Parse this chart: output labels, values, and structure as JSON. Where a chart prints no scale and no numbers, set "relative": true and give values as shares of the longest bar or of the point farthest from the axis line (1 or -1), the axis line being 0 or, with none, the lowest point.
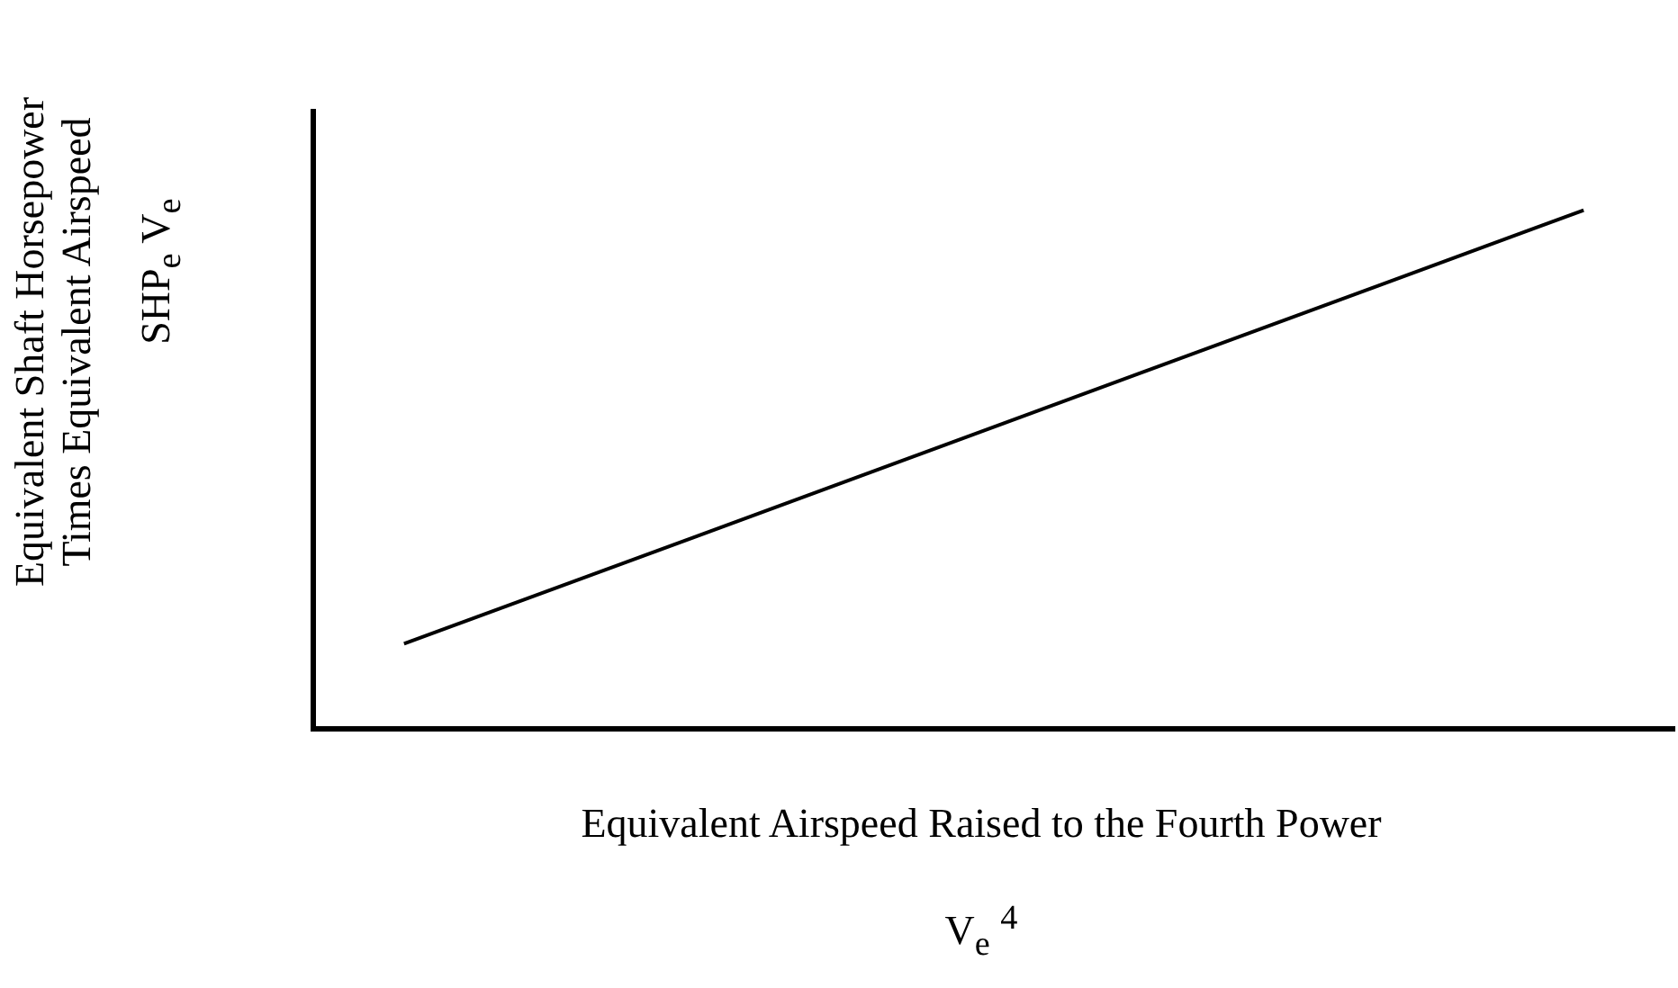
{
  "chart_data": {
    "type": "line",
    "relative": true,
    "tick_labels": false,
    "grid": false,
    "legend": false,
    "marker": "none",
    "line_style": "solid",
    "xlabel": "Equivalent Airspeed Raised to the Fourth Power",
    "ylabel": "SHP$_{e}$ V$_{e}$",
    "annotations": [
      "Equivalent Shaft Horsepower Times Equivalent Airspeed",
      "V$_{e}$ $^{4}$"
    ],
    "categories": [
      null,
      null,
      null,
      null,
      null,
      null,
      null,
      null,
      null,
      null,
      null,
      null,
      null,
      null,
      null,
      null
    ],
    "series": [
      {
        "color": "#000000",
        "values": [
          null,
          0.164,
          null,
          null,
          null,
          null,
          null,
          null,
          null,
          null,
          null,
          null,
          null,
          null,
          1,
          null
        ]
      }
    ]
  }
}
